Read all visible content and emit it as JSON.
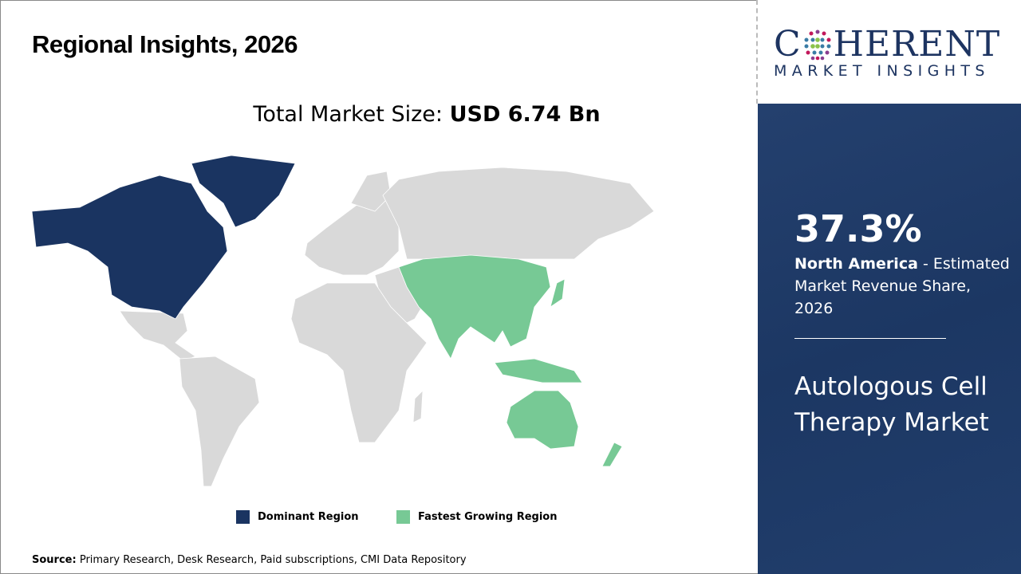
{
  "header": {
    "title": "Regional Insights, 2026"
  },
  "market_size": {
    "label": "Total Market Size:",
    "value": "USD 6.74 Bn"
  },
  "legend": [
    {
      "label": "Dominant Region",
      "color": "#1a3461"
    },
    {
      "label": "Fastest Growing Region",
      "color": "#77c995"
    }
  ],
  "map": {
    "dominant_region": "North America",
    "fastest_growing_region": "Asia Pacific",
    "other_color": "#d9d9d9"
  },
  "source": {
    "label": "Source:",
    "text": "Primary Research, Desk Research, Paid subscriptions, CMI Data Repository"
  },
  "logo": {
    "name": "COHERENT",
    "tagline": "MARKET INSIGHTS"
  },
  "sidebar": {
    "share_value": "37.3%",
    "region": "North America",
    "share_text": " - Estimated Market Revenue Share, 2026",
    "market_name": "Autologous Cell Therapy Market"
  }
}
